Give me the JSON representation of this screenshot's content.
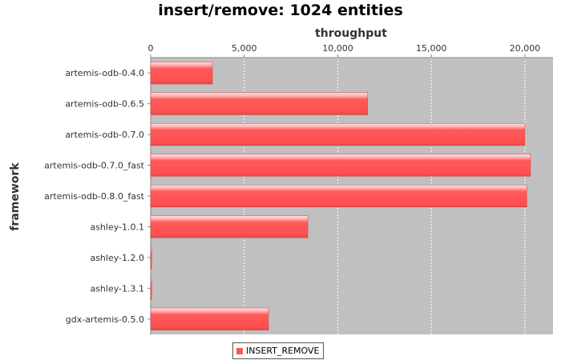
{
  "chart_data": {
    "type": "bar",
    "orientation": "horizontal",
    "title": "insert/remove: 1024 entities",
    "xlabel": "throughput",
    "ylabel": "framework",
    "xaxis_position": "top",
    "xlim": [
      0,
      21500
    ],
    "xticks": [
      0,
      5000,
      10000,
      15000,
      20000
    ],
    "xtick_labels": [
      "0",
      "5,000",
      "10,000",
      "15,000",
      "20,000"
    ],
    "grid": true,
    "categories": [
      "artemis-odb-0.4.0",
      "artemis-odb-0.6.5",
      "artemis-odb-0.7.0",
      "artemis-odb-0.7.0_fast",
      "artemis-odb-0.8.0_fast",
      "ashley-1.0.1",
      "ashley-1.2.0",
      "ashley-1.3.1",
      "gdx-artemis-0.5.0"
    ],
    "series": [
      {
        "name": "INSERT_REMOVE",
        "values": [
          3300,
          11600,
          20000,
          20300,
          20100,
          8400,
          50,
          50,
          6300
        ]
      }
    ],
    "colors": {
      "bar": "#ff5555",
      "plot_background": "#c0c0c0"
    },
    "legend_position": "bottom"
  }
}
